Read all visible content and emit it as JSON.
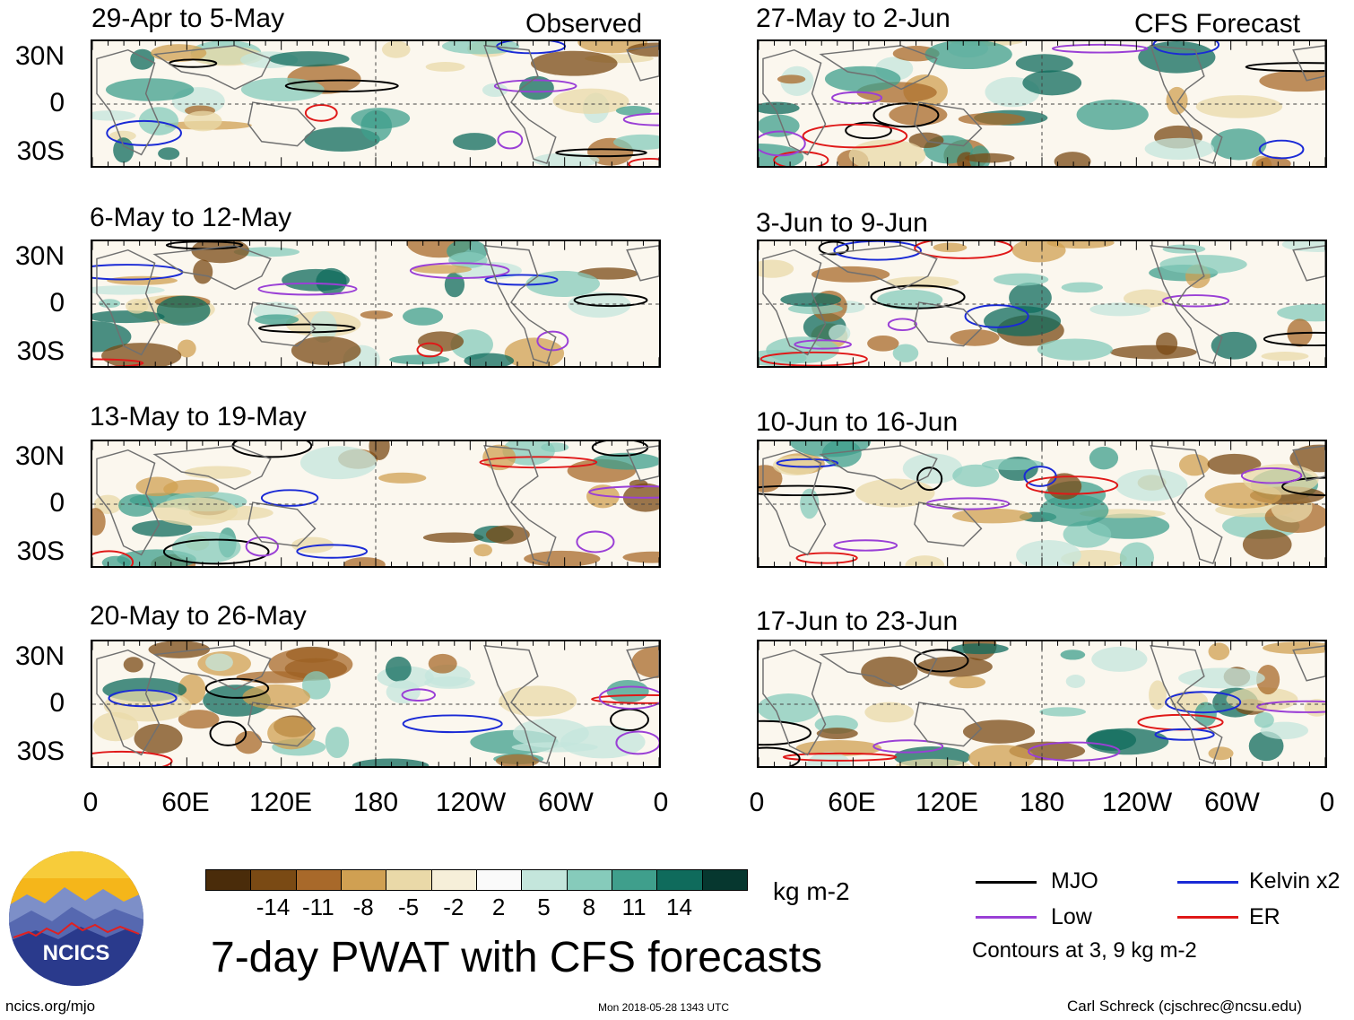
{
  "header": {
    "observed_label": "Observed",
    "forecast_label": "CFS Forecast"
  },
  "panels": {
    "observed": [
      {
        "period": "29-Apr to 5-May"
      },
      {
        "period": "6-May to 12-May"
      },
      {
        "period": "13-May to 19-May"
      },
      {
        "period": "20-May to 26-May"
      }
    ],
    "forecast": [
      {
        "period": "27-May to 2-Jun"
      },
      {
        "period": "3-Jun to 9-Jun"
      },
      {
        "period": "10-Jun to 16-Jun"
      },
      {
        "period": "17-Jun to 23-Jun"
      }
    ]
  },
  "axes": {
    "lat_ticks": [
      "30N",
      "0",
      "30S"
    ],
    "lon_ticks": [
      "0",
      "60E",
      "120E",
      "180",
      "120W",
      "60W",
      "0"
    ]
  },
  "colorbar": {
    "labels": [
      "-14",
      "-11",
      "-8",
      "-5",
      "-2",
      "2",
      "5",
      "8",
      "11",
      "14"
    ],
    "colors": [
      "#4a2c0a",
      "#7a4a14",
      "#a8692a",
      "#d0a052",
      "#ead9a8",
      "#f6efd9",
      "#fafafa",
      "#c4e6dc",
      "#86cbbb",
      "#3f9f8c",
      "#0f6b5c",
      "#06372f"
    ],
    "units": "kg m-2"
  },
  "title": "7-day PWAT with CFS forecasts",
  "legend": {
    "items": [
      {
        "label": "MJO",
        "color": "#000000"
      },
      {
        "label": "Kelvin x2",
        "color": "#1a2ad6"
      },
      {
        "label": "Low",
        "color": "#9a3fd6"
      },
      {
        "label": "ER",
        "color": "#e01818"
      }
    ],
    "contours_note": "Contours at 3, 9 kg m-2"
  },
  "footer": {
    "website": "ncics.org/mjo",
    "timestamp": "Mon 2018-05-28 1343 UTC",
    "author": "Carl Schreck (cjschrec@ncsu.edu)"
  },
  "logo": {
    "text": "NCICS"
  }
}
